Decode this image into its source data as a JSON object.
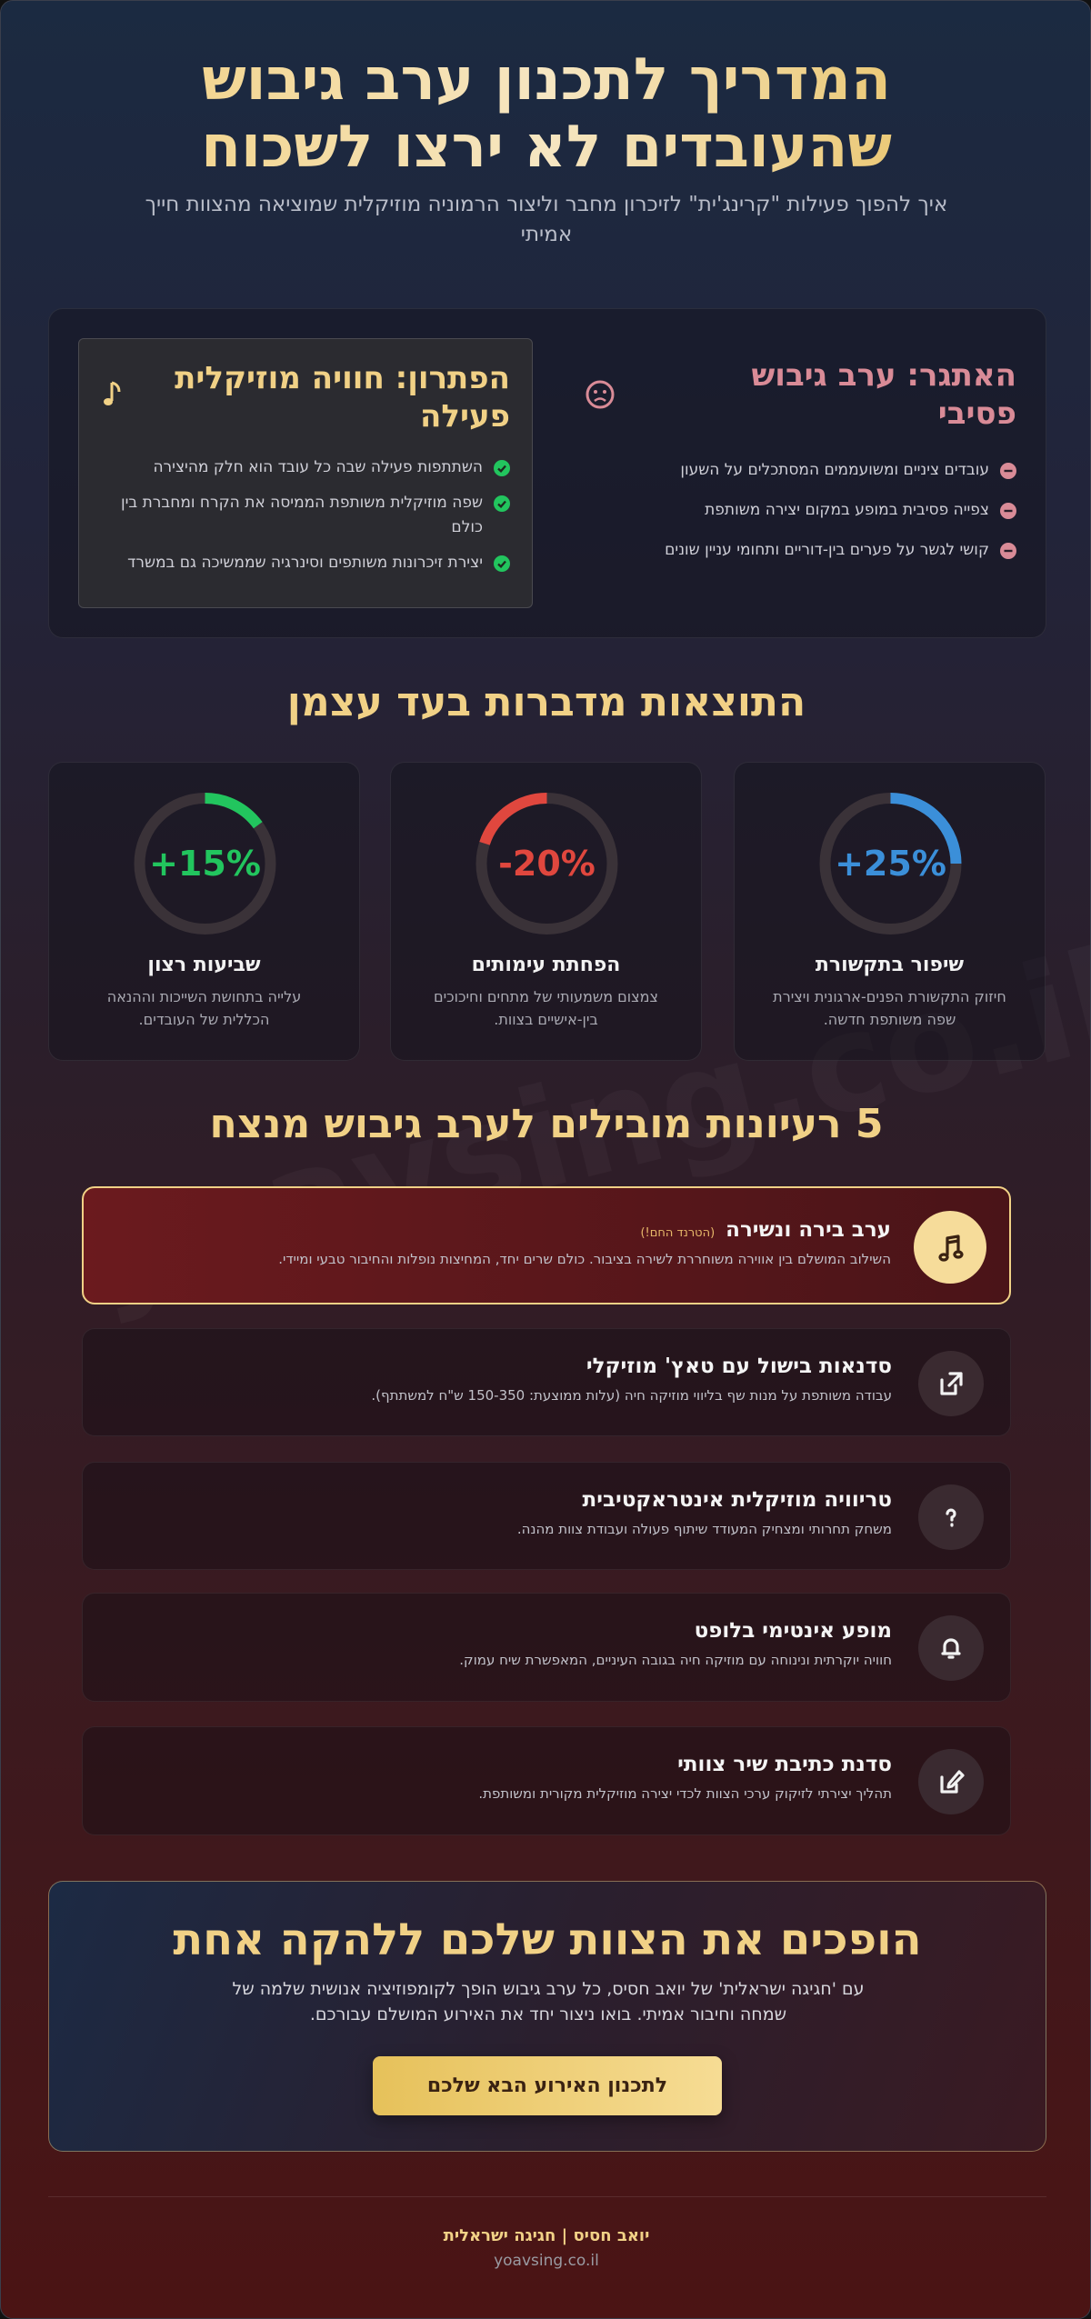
{
  "header": {
    "title": "המדריך לתכנון ערב גיבוש שהעובדים לא ירצו לשכוח",
    "subtitle": "איך להפוך פעילות \"קרינג'ית\" לזיכרון מחבר וליצור הרמוניה מוזיקלית שמוציאה מהצוות חייך אמיתי"
  },
  "watermark": "yoavsing.co.il",
  "challenge": {
    "title": "האתגר: ערב גיבוש פסיבי",
    "items": [
      "עובדים ציניים ומשועממים המסתכלים על השעון",
      "צפייה פסיבית במופע במקום יצירה משותפת",
      "קושי לגשר על פערים בין-דוריים ותחומי עניין שונים"
    ]
  },
  "solution": {
    "title": "הפתרון: חוויה מוזיקלית פעילה",
    "items": [
      "השתתפות פעילה שבה כל עובד הוא חלק מהיצירה",
      "שפה מוזיקלית משותפת הממיסה את הקרח ומחברת בין כולם",
      "יצירת זיכרונות משותפים וסינרגיה שממשיכה גם במשרד"
    ]
  },
  "results": {
    "title": "התוצאות מדברות בעד עצמן",
    "stats": [
      {
        "value": 25,
        "label": "+25%",
        "color": "#3b8fd9",
        "title": "שיפור בתקשורת",
        "text": "חיזוק התקשורת הפנים-ארגונית ויצירת שפה משותפת חדשה."
      },
      {
        "value": -20,
        "label": "-20%",
        "color": "#e0473e",
        "title": "הפחתת עימותים",
        "text": "צמצום משמעותי של מתחים וחיכוכים בין-אישיים בצוות."
      },
      {
        "value": 15,
        "label": "+15%",
        "color": "#22c55e",
        "title": "שביעות רצון",
        "text": "עלייה בתחושת השייכות וההנאה הכללית של העובדים."
      }
    ]
  },
  "ideas": {
    "title": "5 רעיונות מובילים לערב גיבוש מנצח",
    "items": [
      {
        "title": "ערב בירה ונשירה",
        "badge": "(הטרנד החם!)",
        "text": "השילוב המושלם בין אווירה משוחררת לשירה בציבור. כולם שרים יחד, המחיצות נופלות והחיבור טבעי ומיידי."
      },
      {
        "title": "סדנאות בישול עם טאץ' מוזיקלי",
        "text": "עבודה משותפת על מנות שף בליווי מוזיקה חיה (עלות ממוצעת: 150-350 ש\"ח למשתתף)."
      },
      {
        "title": "טריוויה מוזיקלית אינטראקטיבית",
        "text": "משחק תחרותי ומצחיק המעודד שיתוף פעולה ועבודת צוות מהנה."
      },
      {
        "title": "מופע אינטימי בלופט",
        "text": "חוויה יוקרתית ונינוחה עם מוזיקה חיה בגובה העיניים, המאפשרת שיח עמוק."
      },
      {
        "title": "סדנת כתיבת שיר צוותי",
        "text": "תהליך יצירתי לזיקוק ערכי הצוות לכדי יצירה מוזיקלית מקורית ומשותפת."
      }
    ]
  },
  "cta": {
    "title": "הופכים את הצוות שלכם ללהקה אחת",
    "text": "עם 'חגיגה ישראלית' של יואב חסיס, כל ערב גיבוש הופך לקומפוזיציה אנושית שלמה של שמחה וחיבור אמיתי. בואו ניצור יחד את האירוע המושלם עבורכם.",
    "button": "לתכנון האירוע הבא שלכם"
  },
  "footer": {
    "name": "יואב חסיס | חגיגה ישראלית",
    "url": "yoavsing.co.il"
  }
}
